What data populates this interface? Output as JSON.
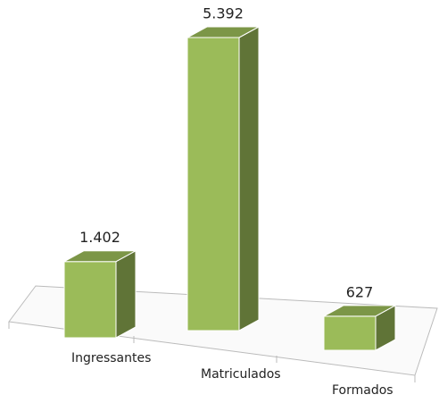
{
  "chart_data": {
    "type": "bar3d",
    "categories": [
      "Ingressantes",
      "Matriculados",
      "Formados"
    ],
    "values": [
      1402,
      5392,
      627
    ],
    "value_labels": [
      "1.402",
      "5.392",
      "627"
    ],
    "color": "#9bbb59"
  }
}
